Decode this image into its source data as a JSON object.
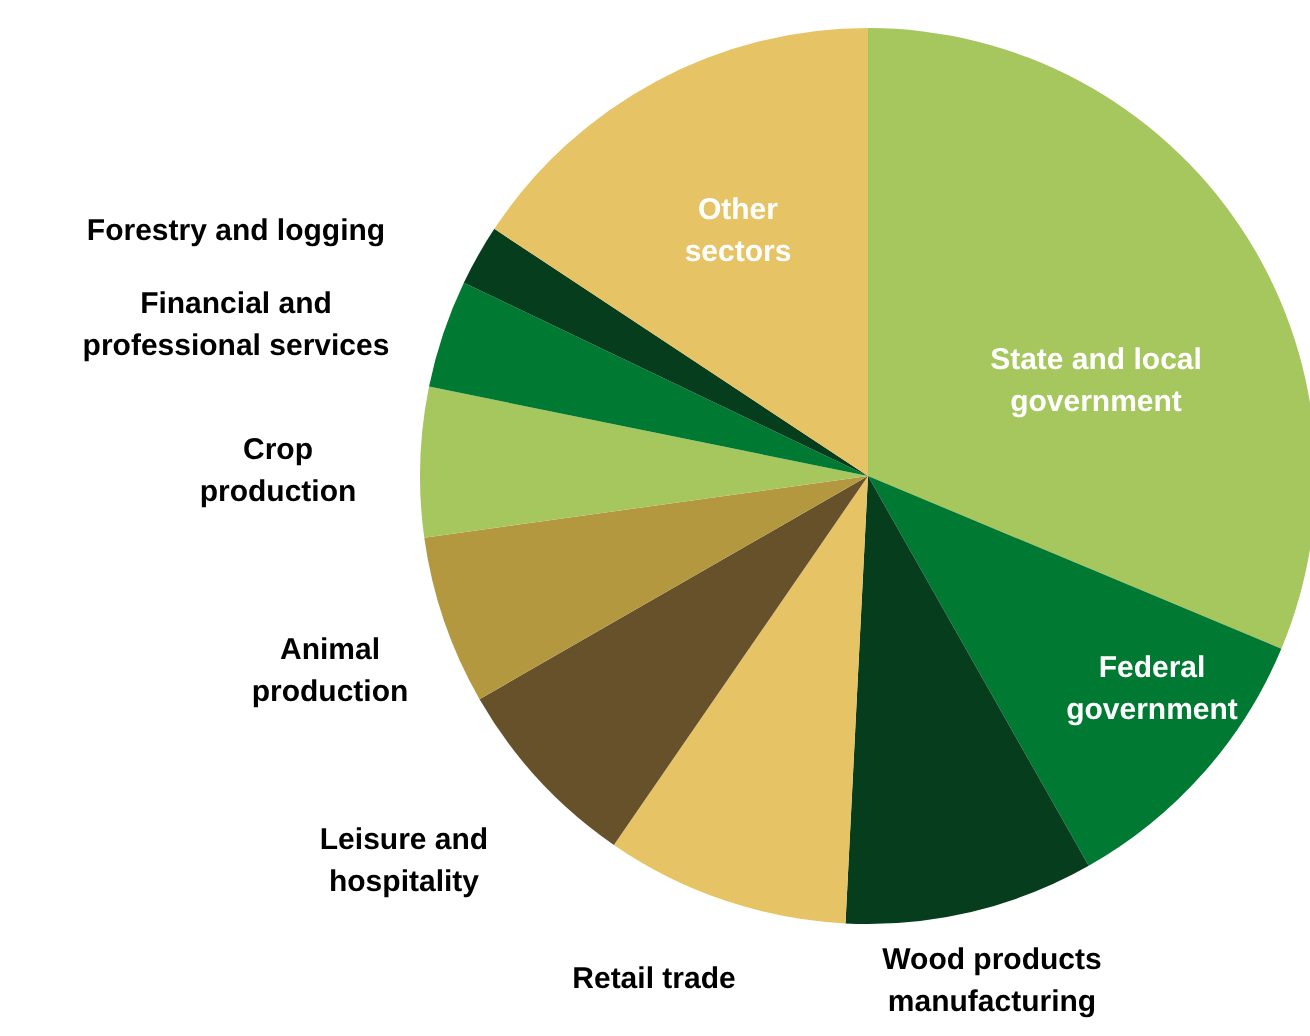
{
  "chart_data": {
    "type": "pie",
    "categories": [
      "State and local government",
      "Federal government",
      "Wood products manufacturing",
      "Retail trade",
      "Leisure and hospitality",
      "Animal production",
      "Crop production",
      "Financial and professional services",
      "Forestry and logging",
      "Other sectors"
    ],
    "values": [
      31.3,
      10.5,
      9.0,
      8.8,
      7.1,
      6.1,
      5.4,
      3.9,
      2.2,
      15.7
    ],
    "colors": [
      "#a6c65e",
      "#007a33",
      "#063d1c",
      "#e6c465",
      "#66512b",
      "#b3983f",
      "#a6c65e",
      "#007a33",
      "#063d1c",
      "#e6c465"
    ]
  }
}
